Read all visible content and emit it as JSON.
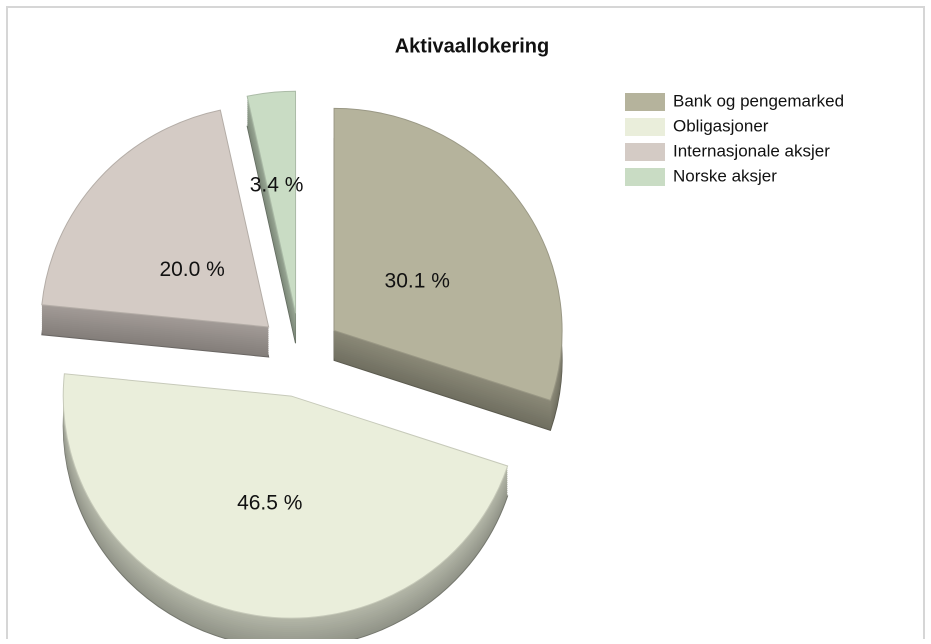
{
  "chart_data": {
    "type": "pie",
    "title": "Aktivaallokering",
    "categories": [
      "Bank og pengemarked",
      "Obligasjoner",
      "Internasjonale aksjer",
      "Norske aksjer"
    ],
    "values": [
      30.1,
      46.5,
      20.0,
      3.4
    ],
    "value_labels": [
      "30.1 %",
      "46.5 %",
      "20.0 %",
      "3.4 %"
    ],
    "colors": [
      "#b5b39c",
      "#eaeedb",
      "#d4cbc5",
      "#c9dcc4"
    ],
    "legend": "right"
  }
}
